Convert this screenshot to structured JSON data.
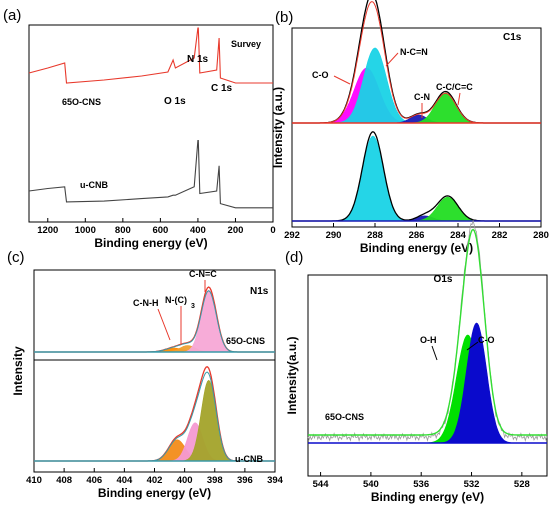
{
  "chart_data": [
    {
      "panel": "(a)",
      "type": "line",
      "xlabel": "Binding energy (eV)",
      "xlim": [
        1300,
        0
      ],
      "xticks": [
        1200,
        1000,
        800,
        600,
        400,
        200,
        0
      ],
      "annotations": [
        "Survey",
        "N 1s",
        "O 1s",
        "C 1s"
      ],
      "series": [
        {
          "name": "65O-CNS",
          "color": "#e8392c",
          "x": [
            1300,
            1200,
            1110,
            1100,
            900,
            700,
            560,
            532,
            520,
            420,
            400,
            398,
            390,
            300,
            287,
            280,
            200,
            100,
            0
          ],
          "y": [
            0.55,
            0.6,
            0.65,
            0.45,
            0.48,
            0.52,
            0.56,
            0.68,
            0.6,
            0.7,
            1.0,
            1.0,
            0.55,
            0.58,
            0.9,
            0.5,
            0.45,
            0.45,
            0.45
          ]
        },
        {
          "name": "u-CNB",
          "color": "#444444",
          "x": [
            1300,
            1200,
            1110,
            1100,
            900,
            700,
            560,
            532,
            520,
            420,
            400,
            398,
            390,
            300,
            287,
            280,
            200,
            100,
            0
          ],
          "y": [
            0.25,
            0.28,
            0.3,
            0.12,
            0.13,
            0.16,
            0.18,
            0.2,
            0.2,
            0.3,
            0.85,
            0.85,
            0.22,
            0.25,
            0.55,
            0.1,
            0.05,
            0.05,
            0.05
          ]
        }
      ]
    },
    {
      "panel": "(b)",
      "type": "area",
      "title": "C1s",
      "xlabel": "Binding energy (eV)",
      "ylabel": "Intensity (a.u.)",
      "xlim": [
        292,
        280
      ],
      "xticks": [
        292,
        290,
        288,
        286,
        284,
        282,
        280
      ],
      "annotations": [
        "C-O",
        "N-C=N",
        "C-N",
        "C-C/C=C"
      ],
      "peaks_top": [
        {
          "label": "C-O",
          "center": 288.4,
          "height": 0.55,
          "width": 0.6,
          "color": "#ff00ff"
        },
        {
          "label": "N-C=N",
          "center": 288.0,
          "height": 0.75,
          "width": 0.55,
          "color": "#19d3e6"
        },
        {
          "label": "C-N",
          "center": 285.9,
          "height": 0.08,
          "width": 0.4,
          "color": "#1b1bb5"
        },
        {
          "label": "C-C/C=C",
          "center": 284.6,
          "height": 0.3,
          "width": 0.5,
          "color": "#22dd22"
        }
      ],
      "peaks_bottom": [
        {
          "label": "N-C=N",
          "center": 288.1,
          "height": 1.0,
          "width": 0.5,
          "color": "#19d3e6"
        },
        {
          "label": "C-N",
          "center": 285.6,
          "height": 0.06,
          "width": 0.4,
          "color": "#1b1bb5"
        },
        {
          "label": "C-C/C=C",
          "center": 284.5,
          "height": 0.28,
          "width": 0.5,
          "color": "#22dd22"
        }
      ]
    },
    {
      "panel": "(c)",
      "type": "area",
      "title": "N1s",
      "xlabel": "Binding energy (eV)",
      "ylabel": "Intensity",
      "xlim": [
        410,
        394
      ],
      "xticks": [
        410,
        408,
        406,
        404,
        402,
        400,
        398,
        396,
        394
      ],
      "annotations": [
        "C-N=C",
        "N-(C)",
        "3",
        "C-N-H",
        "65O-CNS",
        "u-CNB"
      ],
      "peaks_top": [
        {
          "label": "C-N-H",
          "center": 400.7,
          "height": 0.06,
          "width": 0.6,
          "color": "#ff8c00"
        },
        {
          "label": "N-(C)3",
          "center": 399.8,
          "height": 0.1,
          "width": 0.5,
          "color": "#f0a030"
        },
        {
          "label": "C-N=C",
          "center": 398.4,
          "height": 0.95,
          "width": 0.5,
          "color": "#f7a8d6"
        }
      ],
      "peaks_bottom": [
        {
          "label": "C-N-H",
          "center": 400.5,
          "height": 0.25,
          "width": 0.55,
          "color": "#f28c1a"
        },
        {
          "label": "N-(C)3",
          "center": 399.3,
          "height": 0.45,
          "width": 0.5,
          "color": "#f49ad2"
        },
        {
          "label": "C-N=C",
          "center": 398.4,
          "height": 0.95,
          "width": 0.5,
          "color": "#a3a32a"
        }
      ]
    },
    {
      "panel": "(d)",
      "type": "area",
      "title": "O1s",
      "xlabel": "Binding energy (eV)",
      "ylabel": "Intensity(a.u.)",
      "xlim": [
        545,
        526
      ],
      "xticks": [
        544,
        540,
        536,
        532,
        528
      ],
      "annotations": [
        "O-H",
        "C-O",
        "65O-CNS"
      ],
      "peaks": [
        {
          "label": "O-H",
          "center": 532.3,
          "height": 0.72,
          "width": 0.9,
          "color": "#00e000"
        },
        {
          "label": "C-O",
          "center": 531.6,
          "height": 0.8,
          "width": 0.8,
          "color": "#0a0acc"
        }
      ]
    }
  ]
}
